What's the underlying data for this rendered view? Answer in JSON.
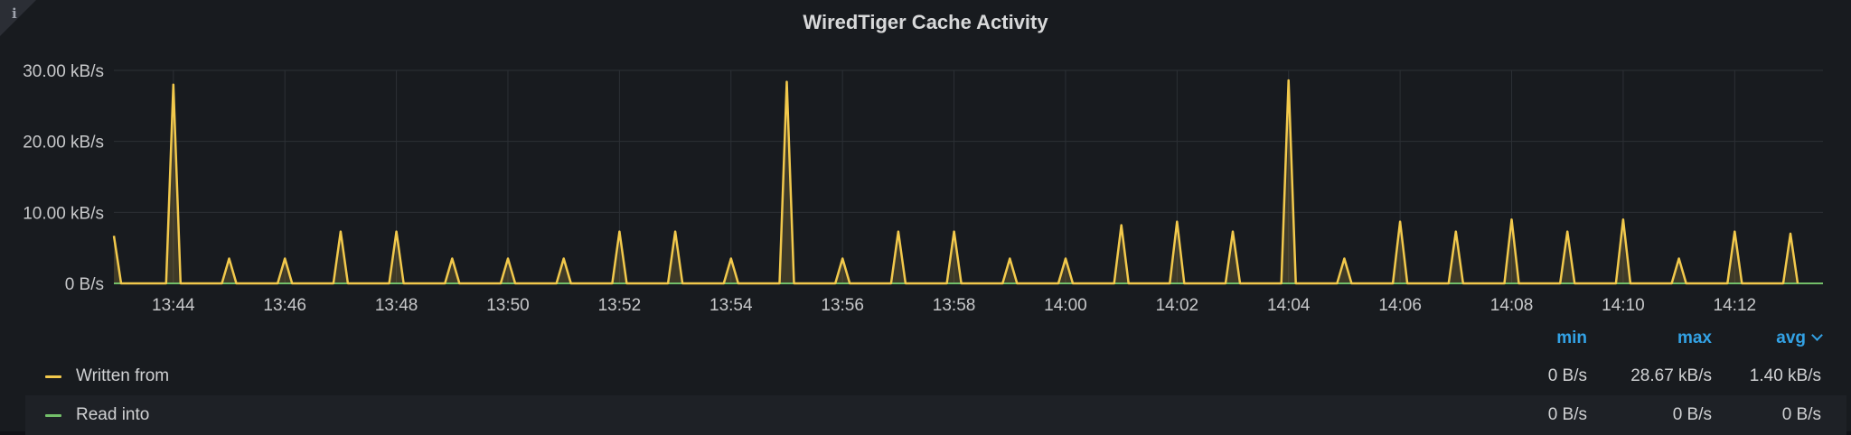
{
  "panel": {
    "title": "WiredTiger Cache Activity",
    "info_icon": "info-icon"
  },
  "chart_data": {
    "type": "area",
    "title": "WiredTiger Cache Activity",
    "x_time_range": [
      "13:42:56",
      "14:13:35"
    ],
    "x_ticks": [
      "13:44",
      "13:46",
      "13:48",
      "13:50",
      "13:52",
      "13:54",
      "13:56",
      "13:58",
      "14:00",
      "14:02",
      "14:04",
      "14:06",
      "14:08",
      "14:10",
      "14:12"
    ],
    "y_unit": "kB/s",
    "y_ticks": [
      "0 B/s",
      "10.00 kB/s",
      "20.00 kB/s",
      "30.00 kB/s"
    ],
    "ylim": [
      0,
      30
    ],
    "grid": true,
    "legend_placement": "bottom",
    "series": [
      {
        "name": "Written from",
        "color": "#f2c94c",
        "peaks": [
          {
            "t": "13:44:00",
            "v": 28.0
          },
          {
            "t": "13:45:00",
            "v": 3.5
          },
          {
            "t": "13:46:00",
            "v": 3.5
          },
          {
            "t": "13:47:00",
            "v": 7.3
          },
          {
            "t": "13:48:00",
            "v": 7.3
          },
          {
            "t": "13:49:00",
            "v": 3.5
          },
          {
            "t": "13:50:00",
            "v": 3.5
          },
          {
            "t": "13:51:00",
            "v": 3.5
          },
          {
            "t": "13:52:00",
            "v": 7.3
          },
          {
            "t": "13:53:00",
            "v": 7.3
          },
          {
            "t": "13:54:00",
            "v": 3.5
          },
          {
            "t": "13:55:00",
            "v": 28.4
          },
          {
            "t": "13:56:00",
            "v": 3.5
          },
          {
            "t": "13:57:00",
            "v": 7.3
          },
          {
            "t": "13:58:00",
            "v": 7.3
          },
          {
            "t": "13:59:00",
            "v": 3.5
          },
          {
            "t": "14:00:00",
            "v": 3.5
          },
          {
            "t": "14:01:00",
            "v": 8.2
          },
          {
            "t": "14:02:00",
            "v": 8.7
          },
          {
            "t": "14:03:00",
            "v": 7.3
          },
          {
            "t": "14:04:00",
            "v": 28.6
          },
          {
            "t": "14:05:00",
            "v": 3.5
          },
          {
            "t": "14:06:00",
            "v": 8.7
          },
          {
            "t": "14:07:00",
            "v": 7.3
          },
          {
            "t": "14:08:00",
            "v": 9.0
          },
          {
            "t": "14:09:00",
            "v": 7.3
          },
          {
            "t": "14:10:00",
            "v": 9.0
          },
          {
            "t": "14:11:00",
            "v": 3.5
          },
          {
            "t": "14:12:00",
            "v": 7.3
          },
          {
            "t": "14:13:00",
            "v": 7.0
          }
        ],
        "start_value": 6.7,
        "min": "0 B/s",
        "max": "28.67 kB/s",
        "avg": "1.40 kB/s"
      },
      {
        "name": "Read into",
        "color": "#73bf69",
        "peaks": [],
        "min": "0 B/s",
        "max": "0 B/s",
        "avg": "0 B/s"
      }
    ]
  },
  "legend": {
    "headers": {
      "min": "min",
      "max": "max",
      "avg": "avg"
    },
    "sort_icon": "chevron-down-icon"
  }
}
